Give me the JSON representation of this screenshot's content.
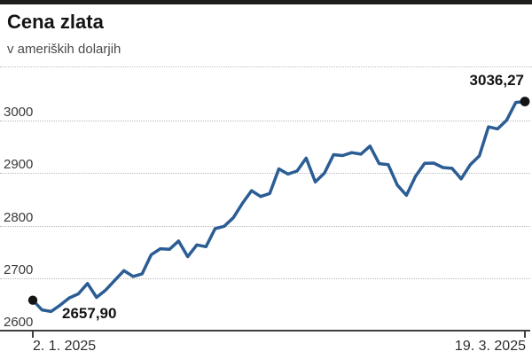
{
  "header": {
    "title": "Cena zlata",
    "subtitle": "v ameriških dolarjih"
  },
  "chart_data": {
    "type": "line",
    "title": "Cena zlata",
    "subtitle": "v ameriških dolarjih",
    "series_name": "Cena zlata (USD)",
    "x_start_label": "2. 1. 2025",
    "x_end_label": "19. 3. 2025",
    "start_label": "2657,90",
    "end_label": "3036,27",
    "start_value": 2657.9,
    "end_value": 3036.27,
    "ylim": [
      2600,
      3050
    ],
    "y_ticks": [
      2600,
      2700,
      2800,
      2900,
      3000
    ],
    "grid": "horizontal-dotted",
    "legend": "none",
    "line_color": "#2b5d94",
    "dot_color": "#141414",
    "dates": [
      "2025-01-02",
      "2025-01-03",
      "2025-01-06",
      "2025-01-07",
      "2025-01-08",
      "2025-01-09",
      "2025-01-10",
      "2025-01-13",
      "2025-01-14",
      "2025-01-15",
      "2025-01-16",
      "2025-01-17",
      "2025-01-20",
      "2025-01-21",
      "2025-01-22",
      "2025-01-23",
      "2025-01-24",
      "2025-01-27",
      "2025-01-28",
      "2025-01-29",
      "2025-01-30",
      "2025-01-31",
      "2025-02-03",
      "2025-02-04",
      "2025-02-05",
      "2025-02-06",
      "2025-02-07",
      "2025-02-10",
      "2025-02-11",
      "2025-02-12",
      "2025-02-13",
      "2025-02-14",
      "2025-02-17",
      "2025-02-18",
      "2025-02-19",
      "2025-02-20",
      "2025-02-21",
      "2025-02-24",
      "2025-02-25",
      "2025-02-26",
      "2025-02-27",
      "2025-02-28",
      "2025-03-03",
      "2025-03-04",
      "2025-03-05",
      "2025-03-06",
      "2025-03-07",
      "2025-03-10",
      "2025-03-11",
      "2025-03-12",
      "2025-03-13",
      "2025-03-14",
      "2025-03-17",
      "2025-03-18",
      "2025-03-19"
    ],
    "values": [
      2657.9,
      2639.5,
      2636.5,
      2648.5,
      2662.2,
      2670.0,
      2689.8,
      2663.3,
      2677.3,
      2695.9,
      2714.3,
      2703.1,
      2708.2,
      2744.6,
      2756.0,
      2754.9,
      2770.6,
      2741.0,
      2763.2,
      2759.9,
      2794.3,
      2798.6,
      2814.9,
      2842.4,
      2866.5,
      2855.4,
      2861.1,
      2908.0,
      2898.1,
      2904.0,
      2928.5,
      2883.1,
      2900.0,
      2935.1,
      2933.3,
      2938.9,
      2936.1,
      2951.4,
      2918.0,
      2916.1,
      2877.1,
      2857.8,
      2894.0,
      2918.4,
      2919.0,
      2910.5,
      2909.1,
      2888.9,
      2915.8,
      2932.6,
      2988.0,
      2984.2,
      3000.7,
      3034.4,
      3036.27
    ]
  }
}
